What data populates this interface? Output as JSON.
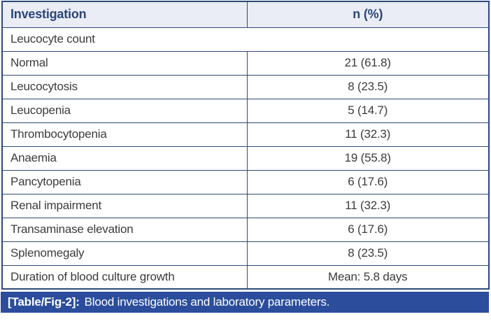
{
  "colors": {
    "border_navy": "#2d4a7a",
    "header_bg": "#eaecf6",
    "header_text": "#2c4678",
    "body_text": "#3c3c3c",
    "caption_bg": "#2b4d9c",
    "caption_text": "#ffffff"
  },
  "table": {
    "columns": [
      "Investigation",
      "n (%)"
    ],
    "rows": [
      {
        "label": "Leucocyte count",
        "value": null,
        "full_span": true
      },
      {
        "label": "Normal",
        "value": "21 (61.8)"
      },
      {
        "label": "Leucocytosis",
        "value": "8 (23.5)"
      },
      {
        "label": "Leucopenia",
        "value": "5 (14.7)"
      },
      {
        "label": "Thrombocytopenia",
        "value": "11 (32.3)"
      },
      {
        "label": "Anaemia",
        "value": "19 (55.8)"
      },
      {
        "label": "Pancytopenia",
        "value": "6 (17.6)"
      },
      {
        "label": "Renal impairment",
        "value": "11 (32.3)"
      },
      {
        "label": "Transaminase elevation",
        "value": "6 (17.6)"
      },
      {
        "label": "Splenomegaly",
        "value": "8 (23.5)"
      },
      {
        "label": "Duration of blood culture growth",
        "value": "Mean: 5.8 days"
      }
    ]
  },
  "caption": {
    "label": "[Table/Fig-2]:",
    "text": "Blood investigations and laboratory parameters."
  }
}
